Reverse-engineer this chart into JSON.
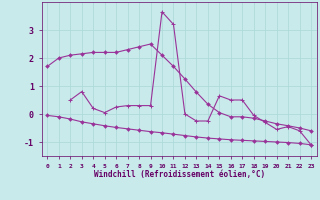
{
  "xlabel": "Windchill (Refroidissement éolien,°C)",
  "hours": [
    0,
    1,
    2,
    3,
    4,
    5,
    6,
    7,
    8,
    9,
    10,
    11,
    12,
    13,
    14,
    15,
    16,
    17,
    18,
    19,
    20,
    21,
    22,
    23
  ],
  "line1": [
    1.7,
    2.0,
    2.1,
    2.15,
    2.2,
    2.2,
    2.2,
    2.3,
    2.4,
    2.5,
    2.1,
    1.7,
    1.25,
    0.78,
    0.35,
    0.05,
    -0.1,
    -0.1,
    -0.15,
    -0.25,
    -0.35,
    -0.42,
    -0.5,
    -0.6
  ],
  "line2": [
    null,
    null,
    0.5,
    0.8,
    0.2,
    0.05,
    0.25,
    0.3,
    0.3,
    0.3,
    3.65,
    3.2,
    0.0,
    -0.25,
    -0.25,
    0.65,
    0.5,
    0.5,
    -0.05,
    -0.3,
    -0.55,
    -0.45,
    -0.6,
    -1.1
  ],
  "line3": [
    -0.05,
    -0.1,
    -0.18,
    -0.28,
    -0.35,
    -0.42,
    -0.48,
    -0.53,
    -0.58,
    -0.63,
    -0.67,
    -0.72,
    -0.77,
    -0.82,
    -0.86,
    -0.89,
    -0.92,
    -0.94,
    -0.96,
    -0.98,
    -1.0,
    -1.02,
    -1.05,
    -1.1
  ],
  "line_color": "#993399",
  "bg_color": "#c8eaea",
  "grid_color": "#aad8d8",
  "ylim": [
    -1.5,
    4.0
  ],
  "yticks": [
    -1,
    0,
    1,
    2,
    3
  ],
  "text_color": "#660066"
}
